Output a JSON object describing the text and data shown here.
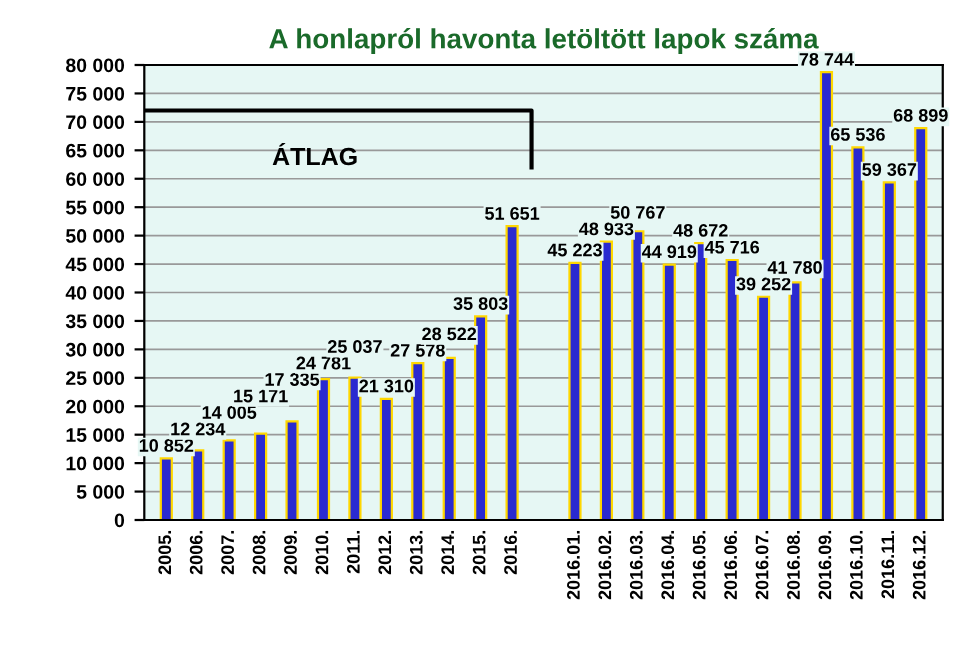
{
  "chart_data": {
    "type": "bar",
    "title": "A honlapról havonta letöltött lapok száma",
    "categories": [
      "2005.",
      "2006.",
      "2007.",
      "2008.",
      "2009.",
      "2010.",
      "2011.",
      "2012.",
      "2013.",
      "2014.",
      "2015.",
      "2016.",
      null,
      "2016.01.",
      "2016.02.",
      "2016.03.",
      "2016.04.",
      "2016.05.",
      "2016.06.",
      "2016.07.",
      "2016.08.",
      "2016.09.",
      "2016.10.",
      "2016.11.",
      "2016.12."
    ],
    "series": [
      {
        "color": "#2a2ad0",
        "values": [
          10852,
          12234,
          14005,
          15171,
          17335,
          24781,
          25037,
          21310,
          27578,
          28522,
          35803,
          51651,
          null,
          45223,
          48933,
          50767,
          44919,
          48672,
          45716,
          39252,
          41780,
          78744,
          65536,
          59367,
          68899
        ],
        "value_labels": [
          "10 852",
          "12 234",
          "14 005",
          "15 171",
          "17 335",
          "24 781",
          "25 037",
          "21 310",
          "27 578",
          "28 522",
          "35 803",
          "51 651",
          null,
          "45 223",
          "48 933",
          "50 767",
          "44 919",
          "48 672",
          "45 716",
          "39 252",
          "41 780",
          "78 744",
          "65 536",
          "59 367",
          "68 899"
        ]
      }
    ],
    "annotations": [
      "ÁTLAG"
    ],
    "ylim": [
      0,
      80000
    ],
    "yticks": [
      {
        "value": 0,
        "label": "0"
      },
      {
        "value": 5000,
        "label": "5 000"
      },
      {
        "value": 10000,
        "label": "10 000"
      },
      {
        "value": 15000,
        "label": "15 000"
      },
      {
        "value": 20000,
        "label": "20 000"
      },
      {
        "value": 25000,
        "label": "25 000"
      },
      {
        "value": 30000,
        "label": "30 000"
      },
      {
        "value": 35000,
        "label": "35 000"
      },
      {
        "value": 40000,
        "label": "40 000"
      },
      {
        "value": 45000,
        "label": "45 000"
      },
      {
        "value": 50000,
        "label": "50 000"
      },
      {
        "value": 55000,
        "label": "55 000"
      },
      {
        "value": 60000,
        "label": "60 000"
      },
      {
        "value": 65000,
        "label": "65 000"
      },
      {
        "value": 70000,
        "label": "70 000"
      },
      {
        "value": 75000,
        "label": "75 000"
      },
      {
        "value": 80000,
        "label": "80 000"
      }
    ],
    "grid": "y",
    "legend": false
  }
}
